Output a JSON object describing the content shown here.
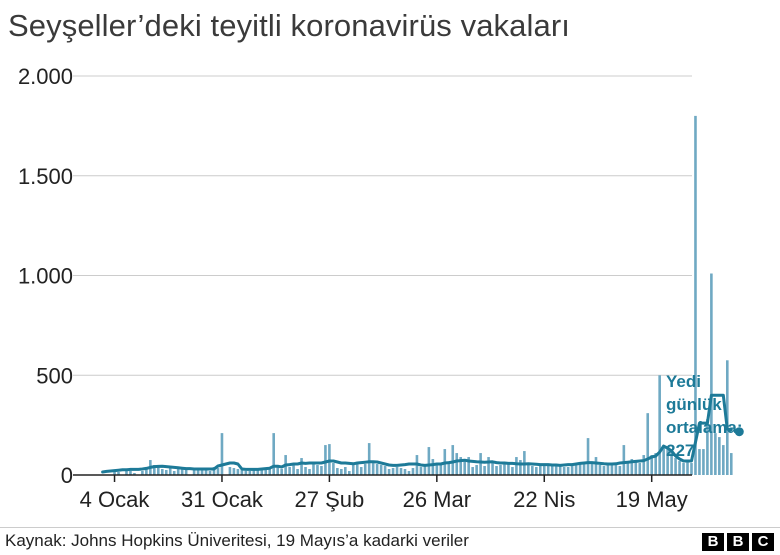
{
  "title": "Seyşeller’deki teyitli koronavirüs vakaları",
  "source": "Kaynak: Johns Hopkins Üniveritesi, 19 Mayıs’a kadarki veriler",
  "logo": [
    "B",
    "B",
    "C"
  ],
  "annotation": [
    "Yedi",
    "günlük",
    "ortalama:",
    "227"
  ],
  "colors": {
    "bar": "#6fa9c3",
    "line": "#1d7a98",
    "grid": "#cccccc",
    "axis": "#222222"
  },
  "chart_data": {
    "type": "bar",
    "x_unit": "day",
    "x_start": "2021-01-01",
    "x_end": "2021-05-19",
    "ylim": [
      0,
      2000
    ],
    "yticks": [
      0,
      500,
      1000,
      1500,
      2000
    ],
    "ytick_labels": [
      "0",
      "500",
      "1.000",
      "1.500",
      "2.000"
    ],
    "xticks": [
      "2021-01-04",
      "2021-01-31",
      "2021-02-27",
      "2021-03-26",
      "2021-04-22",
      "2021-05-19"
    ],
    "xtick_labels": [
      "4 Ocak",
      "31 Ocak",
      "27 Şub",
      "26 Mar",
      "22 Nis",
      "19 May"
    ],
    "series": [
      {
        "kind": "bar",
        "values": [
          0,
          0,
          0,
          20,
          15,
          0,
          25,
          20,
          10,
          0,
          20,
          30,
          75,
          50,
          45,
          30,
          25,
          40,
          20,
          35,
          30,
          30,
          0,
          25,
          35,
          30,
          30,
          20,
          40,
          35,
          210,
          0,
          40,
          35,
          30,
          25,
          20,
          20,
          30,
          35,
          25,
          30,
          35,
          210,
          40,
          30,
          100,
          40,
          60,
          30,
          85,
          40,
          30,
          65,
          50,
          45,
          150,
          155,
          60,
          35,
          30,
          40,
          20,
          50,
          55,
          40,
          55,
          160,
          70,
          55,
          50,
          45,
          30,
          35,
          40,
          35,
          30,
          20,
          35,
          100,
          40,
          50,
          140,
          80,
          60,
          55,
          130,
          60,
          150,
          110,
          90,
          80,
          90,
          40,
          50,
          110,
          45,
          90,
          60,
          45,
          50,
          60,
          60,
          40,
          90,
          75,
          120,
          55,
          45,
          40,
          50,
          45,
          50,
          45,
          55,
          45,
          40,
          40,
          45,
          60,
          65,
          55,
          185,
          60,
          90,
          50,
          45,
          50,
          55,
          60,
          45,
          150,
          60,
          80,
          70,
          60,
          100,
          310,
          100,
          110,
          500,
          150,
          140,
          110,
          85,
          70,
          60,
          70,
          60,
          1800,
          130,
          130,
          280,
          1010,
          210,
          190,
          150,
          575,
          110
        ]
      },
      {
        "kind": "line",
        "values": [
          15,
          18,
          20,
          22,
          24,
          26,
          26,
          28,
          28,
          28,
          30,
          33,
          38,
          42,
          43,
          44,
          42,
          40,
          38,
          36,
          34,
          32,
          32,
          30,
          30,
          30,
          30,
          30,
          30,
          45,
          50,
          55,
          60,
          60,
          55,
          30,
          28,
          28,
          28,
          28,
          30,
          32,
          34,
          44,
          44,
          40,
          50,
          52,
          55,
          55,
          60,
          58,
          60,
          60,
          60,
          60,
          65,
          70,
          70,
          65,
          60,
          60,
          58,
          56,
          60,
          62,
          64,
          66,
          66,
          65,
          60,
          55,
          50,
          48,
          48,
          50,
          52,
          55,
          55,
          55,
          50,
          48,
          50,
          52,
          55,
          55,
          60,
          62,
          65,
          70,
          72,
          74,
          70,
          68,
          66,
          65,
          64,
          65,
          66,
          62,
          60,
          60,
          58,
          58,
          56,
          55,
          55,
          56,
          55,
          54,
          52,
          52,
          52,
          50,
          50,
          48,
          50,
          52,
          52,
          55,
          58,
          60,
          62,
          62,
          60,
          58,
          56,
          55,
          55,
          56,
          60,
          62,
          64,
          66,
          68,
          70,
          72,
          80,
          90,
          95,
          115,
          145,
          135,
          120,
          95,
          80,
          70,
          70,
          70,
          165,
          260,
          260,
          260,
          400,
          400,
          400,
          400,
          230,
          227
        ]
      }
    ]
  }
}
